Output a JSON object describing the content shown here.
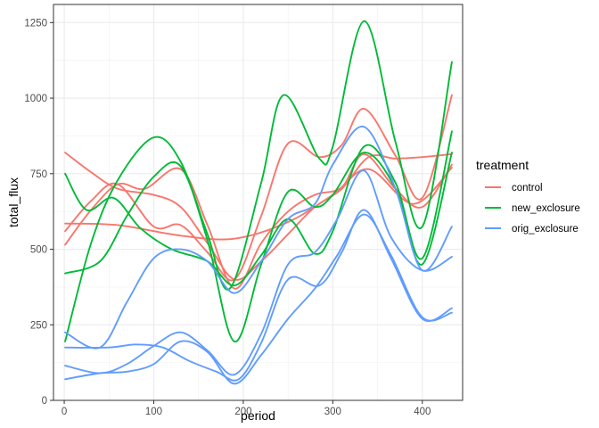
{
  "chart_data": {
    "type": "line",
    "title": "",
    "xlabel": "period",
    "ylabel": "total_flux",
    "xlim": [
      -12,
      445
    ],
    "ylim": [
      0,
      1310
    ],
    "x_ticks": [
      0,
      100,
      200,
      300,
      400
    ],
    "y_ticks": [
      0,
      250,
      500,
      750,
      1000,
      1250
    ],
    "grid": true,
    "legend": {
      "title": "treatment",
      "position": "right",
      "entries": [
        {
          "name": "control",
          "color": "#F8766D"
        },
        {
          "name": "new_exclosure",
          "color": "#00BA38"
        },
        {
          "name": "orig_exclosure",
          "color": "#619CFF"
        }
      ]
    },
    "series": [
      {
        "name": "control",
        "color": "#F8766D",
        "points": [
          [
            1,
            820
          ],
          [
            30,
            755
          ],
          [
            60,
            700
          ],
          [
            100,
            680
          ],
          [
            130,
            640
          ],
          [
            160,
            520
          ],
          [
            190,
            400
          ],
          [
            220,
            460
          ],
          [
            250,
            550
          ],
          [
            280,
            640
          ],
          [
            310,
            700
          ],
          [
            340,
            805
          ],
          [
            370,
            800
          ],
          [
            400,
            805
          ],
          [
            433,
            815
          ]
        ]
      },
      {
        "name": "control",
        "color": "#F8766D",
        "points": [
          [
            1,
            515
          ],
          [
            30,
            630
          ],
          [
            60,
            715
          ],
          [
            90,
            700
          ],
          [
            130,
            765
          ],
          [
            160,
            580
          ],
          [
            190,
            370
          ],
          [
            220,
            520
          ],
          [
            250,
            625
          ],
          [
            280,
            680
          ],
          [
            310,
            705
          ],
          [
            335,
            815
          ],
          [
            370,
            700
          ],
          [
            400,
            640
          ],
          [
            433,
            780
          ]
        ]
      },
      {
        "name": "control",
        "color": "#F8766D",
        "points": [
          [
            1,
            560
          ],
          [
            30,
            660
          ],
          [
            60,
            715
          ],
          [
            100,
            575
          ],
          [
            130,
            580
          ],
          [
            160,
            490
          ],
          [
            190,
            400
          ],
          [
            220,
            610
          ],
          [
            250,
            850
          ],
          [
            285,
            805
          ],
          [
            310,
            845
          ],
          [
            335,
            965
          ],
          [
            370,
            810
          ],
          [
            400,
            670
          ],
          [
            433,
            1010
          ]
        ]
      },
      {
        "name": "control",
        "color": "#F8766D",
        "points": [
          [
            1,
            585
          ],
          [
            60,
            580
          ],
          [
            130,
            545
          ],
          [
            190,
            535
          ],
          [
            250,
            590
          ],
          [
            300,
            680
          ],
          [
            340,
            765
          ],
          [
            390,
            650
          ],
          [
            433,
            770
          ]
        ]
      },
      {
        "name": "new_exclosure",
        "color": "#00BA38",
        "points": [
          [
            1,
            750
          ],
          [
            25,
            630
          ],
          [
            55,
            670
          ],
          [
            85,
            570
          ],
          [
            120,
            500
          ],
          [
            160,
            460
          ],
          [
            190,
            380
          ],
          [
            220,
            480
          ],
          [
            250,
            600
          ],
          [
            280,
            485
          ],
          [
            300,
            560
          ],
          [
            335,
            840
          ],
          [
            370,
            720
          ],
          [
            400,
            470
          ],
          [
            433,
            890
          ]
        ]
      },
      {
        "name": "new_exclosure",
        "color": "#00BA38",
        "points": [
          [
            1,
            195
          ],
          [
            30,
            520
          ],
          [
            60,
            730
          ],
          [
            100,
            870
          ],
          [
            130,
            790
          ],
          [
            160,
            550
          ],
          [
            185,
            370
          ],
          [
            220,
            720
          ],
          [
            245,
            1010
          ],
          [
            285,
            800
          ],
          [
            300,
            840
          ],
          [
            335,
            1255
          ],
          [
            370,
            855
          ],
          [
            400,
            575
          ],
          [
            433,
            1120
          ]
        ]
      },
      {
        "name": "new_exclosure",
        "color": "#00BA38",
        "points": [
          [
            1,
            420
          ],
          [
            40,
            460
          ],
          [
            70,
            610
          ],
          [
            100,
            740
          ],
          [
            130,
            775
          ],
          [
            160,
            530
          ],
          [
            190,
            195
          ],
          [
            220,
            450
          ],
          [
            250,
            690
          ],
          [
            280,
            640
          ],
          [
            300,
            680
          ],
          [
            335,
            820
          ],
          [
            370,
            700
          ],
          [
            400,
            450
          ],
          [
            433,
            820
          ]
        ]
      },
      {
        "name": "orig_exclosure",
        "color": "#619CFF",
        "points": [
          [
            1,
            225
          ],
          [
            40,
            175
          ],
          [
            70,
            325
          ],
          [
            100,
            470
          ],
          [
            130,
            500
          ],
          [
            160,
            460
          ],
          [
            190,
            355
          ],
          [
            220,
            460
          ],
          [
            250,
            600
          ],
          [
            280,
            650
          ],
          [
            300,
            780
          ],
          [
            335,
            905
          ],
          [
            370,
            700
          ],
          [
            400,
            430
          ],
          [
            433,
            575
          ]
        ]
      },
      {
        "name": "orig_exclosure",
        "color": "#619CFF",
        "points": [
          [
            1,
            175
          ],
          [
            50,
            175
          ],
          [
            80,
            185
          ],
          [
            110,
            175
          ],
          [
            140,
            130
          ],
          [
            170,
            95
          ],
          [
            195,
            70
          ],
          [
            220,
            190
          ],
          [
            250,
            400
          ],
          [
            285,
            380
          ],
          [
            310,
            490
          ],
          [
            335,
            630
          ],
          [
            365,
            470
          ],
          [
            400,
            270
          ],
          [
            433,
            305
          ]
        ]
      },
      {
        "name": "orig_exclosure",
        "color": "#619CFF",
        "points": [
          [
            1,
            115
          ],
          [
            40,
            90
          ],
          [
            70,
            120
          ],
          [
            100,
            180
          ],
          [
            130,
            225
          ],
          [
            160,
            165
          ],
          [
            190,
            85
          ],
          [
            220,
            220
          ],
          [
            250,
            450
          ],
          [
            280,
            490
          ],
          [
            305,
            600
          ],
          [
            335,
            760
          ],
          [
            365,
            540
          ],
          [
            400,
            430
          ],
          [
            433,
            475
          ]
        ]
      },
      {
        "name": "orig_exclosure",
        "color": "#619CFF",
        "points": [
          [
            1,
            70
          ],
          [
            40,
            90
          ],
          [
            70,
            95
          ],
          [
            100,
            120
          ],
          [
            130,
            195
          ],
          [
            160,
            160
          ],
          [
            190,
            55
          ],
          [
            220,
            150
          ],
          [
            250,
            270
          ],
          [
            280,
            370
          ],
          [
            305,
            480
          ],
          [
            335,
            615
          ],
          [
            365,
            480
          ],
          [
            400,
            275
          ],
          [
            433,
            290
          ]
        ]
      }
    ]
  }
}
